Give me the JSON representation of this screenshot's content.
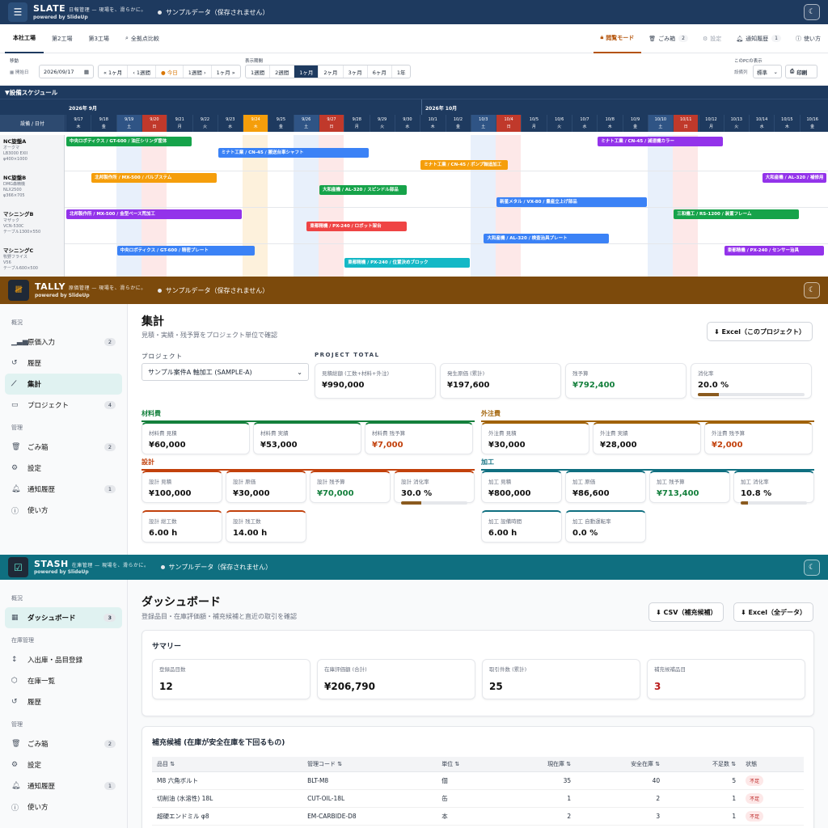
{
  "slate": {
    "brand": "SLATE",
    "tagline": "日報管理 — 現場を、滑らかに。",
    "powered": "powered by SlideUp",
    "sample": "サンプルデータ（保存されません）",
    "tabs": [
      "本社工場",
      "第2工場",
      "第3工場",
      "全拠点比較"
    ],
    "rtabs": {
      "mode": "閲覧モード",
      "trash": "ごみ箱",
      "trash_count": "2",
      "settings": "設定",
      "notify": "通知履歴",
      "notify_count": "1",
      "help": "使い方"
    },
    "move_label": "移動",
    "start_label": "開始日",
    "date": "2026/09/17",
    "nav": [
      "« 1ヶ月",
      "‹ 1週間",
      "● 今日",
      "1週間 ›",
      "1ヶ月 »"
    ],
    "period_label": "表示期間",
    "periods": [
      "1週間",
      "2週間",
      "1ヶ月",
      "2ヶ月",
      "3ヶ月",
      "6ヶ月",
      "1年"
    ],
    "pc_label": "このPCの表示",
    "col_label": "設備列",
    "col_value": "標準",
    "print": "印刷",
    "schedule_title": "▼設備スケジュール",
    "header_corner": "設備 / 日付",
    "months": [
      "2026年 9月",
      "2026年 10月"
    ],
    "days": [
      [
        "9/17",
        "木"
      ],
      [
        "9/18",
        "金"
      ],
      [
        "9/19",
        "土"
      ],
      [
        "9/20",
        "日"
      ],
      [
        "9/21",
        "月"
      ],
      [
        "9/22",
        "火"
      ],
      [
        "9/23",
        "水"
      ],
      [
        "9/24",
        "木"
      ],
      [
        "9/25",
        "金"
      ],
      [
        "9/26",
        "土"
      ],
      [
        "9/27",
        "日"
      ],
      [
        "9/28",
        "月"
      ],
      [
        "9/29",
        "火"
      ],
      [
        "9/30",
        "水"
      ],
      [
        "10/1",
        "木"
      ],
      [
        "10/2",
        "金"
      ],
      [
        "10/3",
        "土"
      ],
      [
        "10/4",
        "日"
      ],
      [
        "10/5",
        "月"
      ],
      [
        "10/6",
        "火"
      ],
      [
        "10/7",
        "水"
      ],
      [
        "10/8",
        "木"
      ],
      [
        "10/9",
        "金"
      ],
      [
        "10/10",
        "土"
      ],
      [
        "10/11",
        "日"
      ],
      [
        "10/12",
        "月"
      ],
      [
        "10/13",
        "火"
      ],
      [
        "10/14",
        "水"
      ],
      [
        "10/15",
        "木"
      ],
      [
        "10/16",
        "金"
      ]
    ],
    "equipment": [
      {
        "name": "NC旋盤A",
        "l1": "オークマ",
        "l2": "LB3000 EXII",
        "l3": "φ400×1000"
      },
      {
        "name": "NC旋盤B",
        "l1": "DMG森精機",
        "l2": "NLX2500",
        "l3": "φ366×705"
      },
      {
        "name": "マシニングB",
        "l1": "マザック",
        "l2": "VCN-530C",
        "l3": "テーブル1300×550"
      },
      {
        "name": "マシニングC",
        "l1": "牧野フライス",
        "l2": "V56",
        "l3": "テーブル600×500"
      }
    ],
    "bars": [
      {
        "row": 0,
        "start": 0,
        "len": 5,
        "top": 2,
        "color": "#16a34a",
        "label": "中央ロボティクス / GT-600 / 油圧シリンダ筐体"
      },
      {
        "row": 0,
        "start": 6,
        "len": 6,
        "top": 16,
        "color": "#3b82f6",
        "label": "ミナト工業 / CN-45 / 搬送台車シャフト"
      },
      {
        "row": 0,
        "start": 14,
        "len": 3.5,
        "top": 31,
        "color": "#f59e0b",
        "label": "ミナト工業 / CN-45 / ポンプ軸追加工"
      },
      {
        "row": 0,
        "start": 21,
        "len": 5,
        "top": 2,
        "color": "#9333ea",
        "label": "ミナト工業 / CN-45 / 減速機カラー"
      },
      {
        "row": 1,
        "start": 1,
        "len": 5,
        "top": 2,
        "color": "#f59e0b",
        "label": "北邦製作所 / MX-500 / バルブステム"
      },
      {
        "row": 1,
        "start": 10,
        "len": 3.5,
        "top": 17,
        "color": "#16a34a",
        "label": "大和産機 / AL-320 / スピンドル部品"
      },
      {
        "row": 1,
        "start": 17,
        "len": 6,
        "top": 32,
        "color": "#3b82f6",
        "label": "新星メタル / VX-80 / 量産立上げ部品"
      },
      {
        "row": 1,
        "start": 27.5,
        "len": 3,
        "top": 2,
        "color": "#9333ea",
        "label": "大和産機 / AL-320 / 補修用"
      },
      {
        "row": 2,
        "start": 0,
        "len": 7,
        "top": 2,
        "color": "#9333ea",
        "label": "北邦製作所 / MX-500 / 金型ベース荒加工"
      },
      {
        "row": 2,
        "start": 24,
        "len": 5,
        "top": 2,
        "color": "#16a34a",
        "label": "三和機工 / RS-1200 / 装置フレーム"
      },
      {
        "row": 2,
        "start": 9.5,
        "len": 4,
        "top": 17,
        "color": "#ef4444",
        "label": "東都精機 / PX-240 / ロボット架台"
      },
      {
        "row": 2,
        "start": 16.5,
        "len": 5,
        "top": 32,
        "color": "#3b82f6",
        "label": "大和産機 / AL-320 / 検査治具プレート"
      },
      {
        "row": 3,
        "start": 2,
        "len": 5.5,
        "top": 2,
        "color": "#3b82f6",
        "label": "中央ロボティクス / GT-600 / 精密プレート"
      },
      {
        "row": 3,
        "start": 11,
        "len": 5,
        "top": 17,
        "color": "#14b8c6",
        "label": "東都精機 / PX-240 / 位置決めブロック"
      },
      {
        "row": 3,
        "start": 26,
        "len": 4,
        "top": 2,
        "color": "#9333ea",
        "label": "東都精機 / PX-240 / センサー治具"
      }
    ]
  },
  "tally": {
    "brand": "TALLY",
    "tagline": "原価管理 — 現場を、滑らかに。",
    "powered": "powered by SlideUp",
    "sample": "サンプルデータ（保存されません）",
    "nav": [
      {
        "type": "group",
        "label": "概況"
      },
      {
        "type": "item",
        "icon": "chart",
        "label": "原価入力",
        "badge": "2"
      },
      {
        "type": "item",
        "icon": "history",
        "label": "履歴"
      },
      {
        "type": "item",
        "icon": "trend",
        "label": "集計",
        "active": true
      },
      {
        "type": "item",
        "icon": "folder",
        "label": "プロジェクト",
        "badge": "4"
      },
      {
        "type": "group",
        "label": "管理"
      },
      {
        "type": "item",
        "icon": "trash",
        "label": "ごみ箱",
        "badge": "2"
      },
      {
        "type": "item",
        "icon": "gear",
        "label": "設定"
      },
      {
        "type": "item",
        "icon": "bell",
        "label": "通知履歴",
        "badge": "1"
      },
      {
        "type": "item",
        "icon": "help",
        "label": "使い方"
      }
    ],
    "title": "集計",
    "subtitle": "見積・実績・残予算をプロジェクト単位で確認",
    "excel": "⬇ Excel（このプロジェクト）",
    "project_label": "プロジェクト",
    "project_value": "サンプル案件A 軸加工 (SAMPLE-A)",
    "total_label": "PROJECT TOTAL",
    "totals": [
      {
        "l": "見積総額 (工数+材料+外注)",
        "v": "¥990,000"
      },
      {
        "l": "発生原価 (累計)",
        "v": "¥197,600"
      },
      {
        "l": "残予算",
        "v": "¥792,400"
      },
      {
        "l": "消化率",
        "v": "20.0 %",
        "p": 0.2
      }
    ],
    "material": {
      "title": "材料費",
      "cards": [
        {
          "l": "材料費 見積",
          "v": "¥60,000"
        },
        {
          "l": "材料費 実績",
          "v": "¥53,000"
        },
        {
          "l": "材料費 残予算",
          "v": "¥7,000"
        }
      ]
    },
    "outsource": {
      "title": "外注費",
      "cards": [
        {
          "l": "外注費 見積",
          "v": "¥30,000"
        },
        {
          "l": "外注費 実績",
          "v": "¥28,000"
        },
        {
          "l": "外注費 残予算",
          "v": "¥2,000"
        }
      ]
    },
    "design": {
      "title": "設計",
      "cards": [
        {
          "l": "設計 見積",
          "v": "¥100,000"
        },
        {
          "l": "設計 原価",
          "v": "¥30,000"
        },
        {
          "l": "設計 残予算",
          "v": "¥70,000"
        },
        {
          "l": "設計 消化率",
          "v": "30.0 %",
          "p": 0.3
        },
        {
          "l": "設計 総工数",
          "v": "6.00 h"
        },
        {
          "l": "設計 残工数",
          "v": "14.00 h"
        }
      ]
    },
    "machining": {
      "title": "加工",
      "cards": [
        {
          "l": "加工 見積",
          "v": "¥800,000"
        },
        {
          "l": "加工 原価",
          "v": "¥86,600"
        },
        {
          "l": "加工 残予算",
          "v": "¥713,400"
        },
        {
          "l": "加工 消化率",
          "v": "10.8 %",
          "p": 0.108
        },
        {
          "l": "加工 設備時間",
          "v": "6.00 h"
        },
        {
          "l": "加工 自動運転率",
          "v": "0.0 %"
        }
      ]
    }
  },
  "stash": {
    "brand": "STASH",
    "tagline": "在庫管理 — 現場を、滑らかに。",
    "powered": "powered by SlideUp",
    "sample": "サンプルデータ（保存されません）",
    "nav": [
      {
        "type": "group",
        "label": "概況"
      },
      {
        "type": "item",
        "icon": "grid",
        "label": "ダッシュボード",
        "badge": "3",
        "active": true
      },
      {
        "type": "group",
        "label": "在庫管理"
      },
      {
        "type": "item",
        "icon": "updown",
        "label": "入出庫・品目登録"
      },
      {
        "type": "item",
        "icon": "box",
        "label": "在庫一覧"
      },
      {
        "type": "item",
        "icon": "history",
        "label": "履歴"
      },
      {
        "type": "group",
        "label": "管理"
      },
      {
        "type": "item",
        "icon": "trash",
        "label": "ごみ箱",
        "badge": "2"
      },
      {
        "type": "item",
        "icon": "gear",
        "label": "設定"
      },
      {
        "type": "item",
        "icon": "bell",
        "label": "通知履歴",
        "badge": "1"
      },
      {
        "type": "item",
        "icon": "help",
        "label": "使い方"
      }
    ],
    "title": "ダッシュボード",
    "subtitle": "登録品目・在庫評価額・補充候補と直近の取引を確認",
    "csv": "⬇ CSV（補充候補）",
    "excel": "⬇ Excel（全データ）",
    "summary_title": "サマリー",
    "summary": [
      {
        "l": "登録品目数",
        "v": "12"
      },
      {
        "l": "在庫評価額 (合計)",
        "v": "¥206,790"
      },
      {
        "l": "取引件数 (累計)",
        "v": "25"
      },
      {
        "l": "補充候補品目",
        "v": "3"
      }
    ],
    "reorder_title": "補充候補 (在庫が安全在庫を下回るもの)",
    "columns": [
      "品目 ⇅",
      "管理コード ⇅",
      "単位 ⇅",
      "現在庫 ⇅",
      "安全在庫 ⇅",
      "不足数 ⇅",
      "状態"
    ],
    "rows": [
      {
        "name": "M8 六角ボルト",
        "code": "BLT-M8",
        "unit": "個",
        "stock": "35",
        "safety": "40",
        "short": "5",
        "status": "不足"
      },
      {
        "name": "切削油 (水溶性) 18L",
        "code": "CUT-OIL-18L",
        "unit": "缶",
        "stock": "1",
        "safety": "2",
        "short": "1",
        "status": "不足"
      },
      {
        "name": "超硬エンドミル φ8",
        "code": "EM-CARBIDE-D8",
        "unit": "本",
        "stock": "2",
        "safety": "3",
        "short": "1",
        "status": "不足"
      }
    ]
  }
}
